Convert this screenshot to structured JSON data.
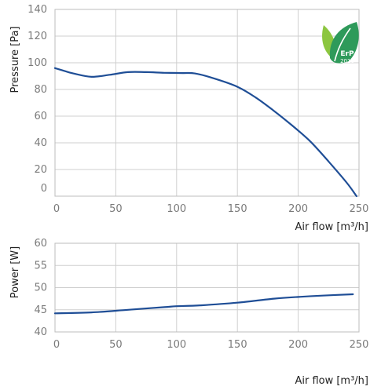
{
  "chart_data": [
    {
      "type": "line",
      "ylabel": "Pressure [Pa]",
      "xlabel": "Air flow [m³/h]",
      "xlim": [
        0,
        250
      ],
      "ylim": [
        0,
        140
      ],
      "xticks": [
        0,
        50,
        100,
        150,
        200,
        250
      ],
      "yticks": [
        0,
        20,
        40,
        60,
        80,
        100,
        120,
        140
      ],
      "grid": true,
      "series": [
        {
          "color": "#1f4e96",
          "x": [
            0,
            15,
            30,
            45,
            60,
            75,
            90,
            105,
            115,
            130,
            150,
            165,
            180,
            195,
            210,
            225,
            240,
            248
          ],
          "y": [
            96,
            92,
            89.5,
            91,
            93,
            93,
            92.5,
            92.3,
            92,
            88.5,
            82,
            74,
            64,
            53,
            41,
            26,
            10,
            0
          ]
        }
      ],
      "badge": {
        "text": "ErP",
        "year": "2018",
        "colors": [
          "#8cc63f",
          "#2e9a5a"
        ]
      }
    },
    {
      "type": "line",
      "ylabel": "Power [W]",
      "xlabel": "Air flow [m³/h]",
      "xlim": [
        0,
        250
      ],
      "ylim": [
        40,
        60
      ],
      "xticks": [
        0,
        50,
        100,
        150,
        200,
        250
      ],
      "yticks": [
        40,
        45,
        50,
        55,
        60
      ],
      "grid": true,
      "series": [
        {
          "color": "#1f4e96",
          "x": [
            0,
            30,
            60,
            90,
            100,
            120,
            150,
            180,
            200,
            220,
            245
          ],
          "y": [
            44.2,
            44.4,
            45,
            45.6,
            45.8,
            46,
            46.6,
            47.5,
            47.9,
            48.2,
            48.5
          ]
        }
      ]
    }
  ]
}
